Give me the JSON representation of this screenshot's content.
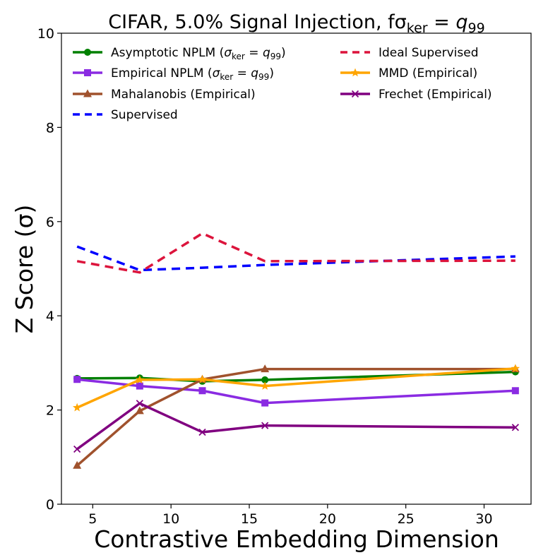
{
  "chart_data": {
    "type": "line",
    "title": "CIFAR, 5.0% Signal Injection, fσ",
    "title_sub": "ker",
    "title_eq": " = ",
    "title_q": "q",
    "title_q_sub": "99",
    "xlabel": "Contrastive Embedding Dimension",
    "ylabel": "Z Score (σ)",
    "xlim": [
      3,
      33
    ],
    "ylim": [
      0,
      10
    ],
    "xticks": [
      5,
      10,
      15,
      20,
      25,
      30
    ],
    "yticks": [
      0,
      2,
      4,
      6,
      8,
      10
    ],
    "x": [
      4,
      8,
      12,
      16,
      32
    ],
    "series": [
      {
        "name": "Asymptotic NPLM (σker = q99)",
        "label_prefix": "Asymptotic NPLM (",
        "label_suffix": ")",
        "label_math": true,
        "color": "#008000",
        "dash": "",
        "marker": "circle",
        "values": [
          2.67,
          2.68,
          2.61,
          2.64,
          2.81
        ]
      },
      {
        "name": "Empirical NPLM (σker = q99)",
        "label_prefix": "Empirical NPLM (",
        "label_suffix": ")",
        "label_math": true,
        "color": "#8a2be2",
        "dash": "",
        "marker": "square",
        "values": [
          2.65,
          2.51,
          2.41,
          2.15,
          2.41
        ]
      },
      {
        "name": "Mahalanobis (Empirical)",
        "label_prefix": "Mahalanobis (Empirical)",
        "label_suffix": "",
        "label_math": false,
        "color": "#a0522d",
        "dash": "",
        "marker": "triangle",
        "values": [
          0.82,
          1.98,
          2.65,
          2.87,
          2.87
        ]
      },
      {
        "name": "Supervised",
        "label_prefix": "Supervised",
        "label_suffix": "",
        "label_math": false,
        "color": "#0000ff",
        "dash": "12,8",
        "marker": "none",
        "values": [
          5.47,
          4.97,
          5.02,
          5.08,
          5.26
        ]
      },
      {
        "name": "Ideal Supervised",
        "label_prefix": "Ideal Supervised",
        "label_suffix": "",
        "label_math": false,
        "color": "#dc143c",
        "dash": "12,8",
        "marker": "none",
        "values": [
          5.16,
          4.92,
          5.75,
          5.16,
          5.17
        ]
      },
      {
        "name": "MMD (Empirical)",
        "label_prefix": "MMD (Empirical)",
        "label_suffix": "",
        "label_math": false,
        "color": "#ffa500",
        "dash": "",
        "marker": "star",
        "values": [
          2.05,
          2.64,
          2.65,
          2.51,
          2.88
        ]
      },
      {
        "name": "Frechet (Empirical)",
        "label_prefix": "Frechet (Empirical)",
        "label_suffix": "",
        "label_math": false,
        "color": "#800080",
        "dash": "",
        "marker": "x",
        "values": [
          1.17,
          2.14,
          1.53,
          1.67,
          1.63
        ]
      }
    ],
    "math_sigma": "σ",
    "math_ker": "ker",
    "math_eq": " = ",
    "math_q": "q",
    "math_99": "99",
    "legend_position": "upper, two columns",
    "grid": false
  }
}
